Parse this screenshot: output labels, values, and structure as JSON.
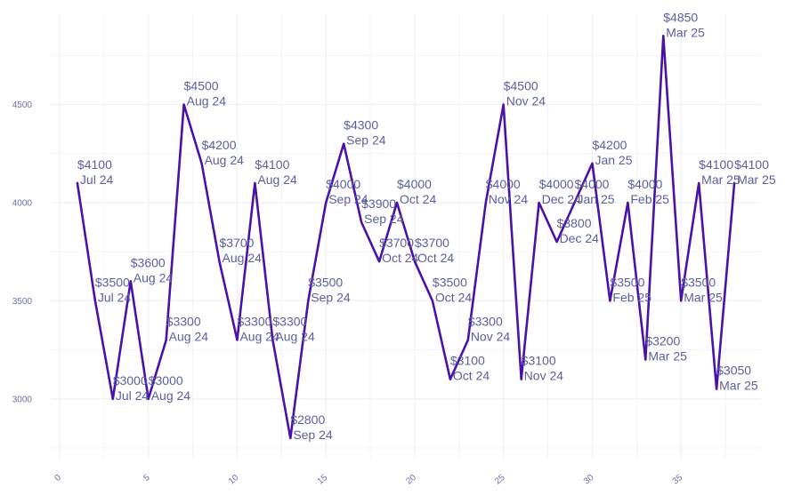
{
  "chart_data": {
    "type": "line",
    "title": "",
    "xlabel": "",
    "ylabel": "",
    "xlim": [
      -0.5,
      39.5
    ],
    "ylim": [
      2700,
      4960
    ],
    "x_ticks": [
      0,
      5,
      10,
      15,
      20,
      25,
      30,
      35
    ],
    "y_ticks": [
      3000,
      3500,
      4000,
      4500
    ],
    "x_tick_labels": [
      "0",
      "5",
      "10",
      "15",
      "20",
      "25",
      "30",
      "35"
    ],
    "y_tick_labels": [
      "3000",
      "3500",
      "4000",
      "4500"
    ],
    "grid": true,
    "colors": {
      "line": "#4a12a8",
      "label": "#5c5f9e",
      "grid": "#efeff5",
      "tick": "#6b6fa8"
    },
    "series": [
      {
        "points": [
          {
            "x": 1,
            "y": 4100,
            "price": "$4100",
            "month": "Jul 24"
          },
          {
            "x": 2,
            "y": 3500,
            "price": "$3500",
            "month": "Jul 24"
          },
          {
            "x": 3,
            "y": 3000,
            "price": "$3000",
            "month": "Jul 24"
          },
          {
            "x": 4,
            "y": 3600,
            "price": "$3600",
            "month": "Aug 24"
          },
          {
            "x": 5,
            "y": 3000,
            "price": "$3000",
            "month": "Aug 24"
          },
          {
            "x": 6,
            "y": 3300,
            "price": "$3300",
            "month": "Aug 24"
          },
          {
            "x": 7,
            "y": 4500,
            "price": "$4500",
            "month": "Aug 24"
          },
          {
            "x": 8,
            "y": 4200,
            "price": "$4200",
            "month": "Aug 24"
          },
          {
            "x": 9,
            "y": 3700,
            "price": "$3700",
            "month": "Aug 24"
          },
          {
            "x": 10,
            "y": 3300,
            "price": "$3300",
            "month": "Aug 24"
          },
          {
            "x": 11,
            "y": 4100,
            "price": "$4100",
            "month": "Aug 24"
          },
          {
            "x": 12,
            "y": 3300,
            "price": "$3300",
            "month": "Aug 24"
          },
          {
            "x": 13,
            "y": 2800,
            "price": "$2800",
            "month": "Sep 24"
          },
          {
            "x": 14,
            "y": 3500,
            "price": "$3500",
            "month": "Sep 24"
          },
          {
            "x": 15,
            "y": 4000,
            "price": "$4000",
            "month": "Sep 24"
          },
          {
            "x": 16,
            "y": 4300,
            "price": "$4300",
            "month": "Sep 24"
          },
          {
            "x": 17,
            "y": 3900,
            "price": "$3900",
            "month": "Sep 24"
          },
          {
            "x": 18,
            "y": 3700,
            "price": "$3700",
            "month": "Oct 24"
          },
          {
            "x": 19,
            "y": 4000,
            "price": "$4000",
            "month": "Oct 24"
          },
          {
            "x": 20,
            "y": 3700,
            "price": "$3700",
            "month": "Oct 24"
          },
          {
            "x": 21,
            "y": 3500,
            "price": "$3500",
            "month": "Oct 24"
          },
          {
            "x": 22,
            "y": 3100,
            "price": "$3100",
            "month": "Oct 24"
          },
          {
            "x": 23,
            "y": 3300,
            "price": "$3300",
            "month": "Nov 24"
          },
          {
            "x": 24,
            "y": 4000,
            "price": "$4000",
            "month": "Nov 24"
          },
          {
            "x": 25,
            "y": 4500,
            "price": "$4500",
            "month": "Nov 24"
          },
          {
            "x": 26,
            "y": 3100,
            "price": "$3100",
            "month": "Nov 24"
          },
          {
            "x": 27,
            "y": 4000,
            "price": "$4000",
            "month": "Dec 24"
          },
          {
            "x": 28,
            "y": 3800,
            "price": "$3800",
            "month": "Dec 24"
          },
          {
            "x": 29,
            "y": 4000,
            "price": "$4000",
            "month": "Jan 25"
          },
          {
            "x": 30,
            "y": 4200,
            "price": "$4200",
            "month": "Jan 25"
          },
          {
            "x": 31,
            "y": 3500,
            "price": "$3500",
            "month": "Feb 25"
          },
          {
            "x": 32,
            "y": 4000,
            "price": "$4000",
            "month": "Feb 25"
          },
          {
            "x": 33,
            "y": 3200,
            "price": "$3200",
            "month": "Mar 25"
          },
          {
            "x": 34,
            "y": 4850,
            "price": "$4850",
            "month": "Mar 25"
          },
          {
            "x": 35,
            "y": 3500,
            "price": "$3500",
            "month": "Mar 25"
          },
          {
            "x": 36,
            "y": 4100,
            "price": "$4100",
            "month": "Mar 25"
          },
          {
            "x": 37,
            "y": 3050,
            "price": "$3050",
            "month": "Mar 25"
          },
          {
            "x": 38,
            "y": 4100,
            "price": "$4100",
            "month": "Mar 25"
          }
        ]
      }
    ]
  }
}
